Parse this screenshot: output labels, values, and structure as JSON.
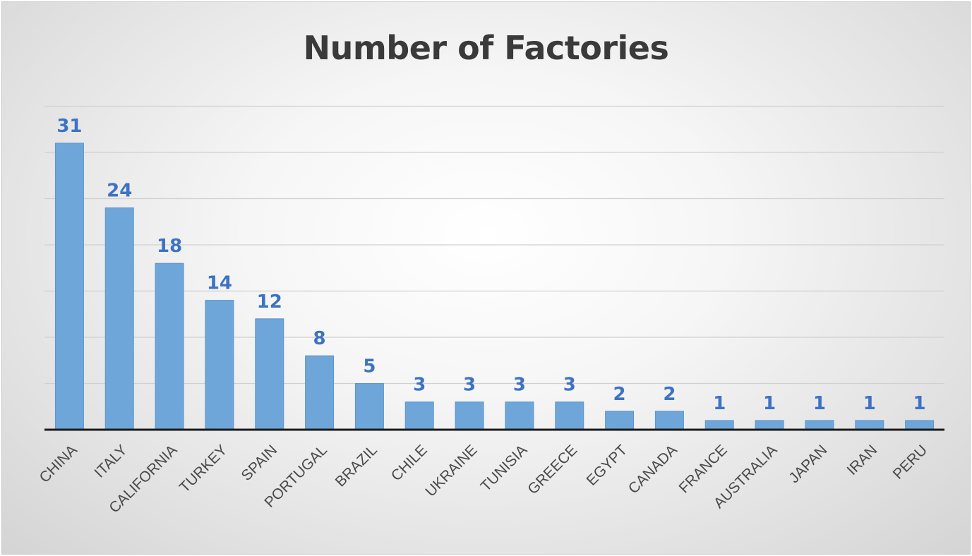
{
  "chart_data": {
    "type": "bar",
    "title": "Number of Factories",
    "xlabel": "",
    "ylabel": "",
    "categories": [
      "CHINA",
      "ITALY",
      "CALIFORNIA",
      "TURKEY",
      "SPAIN",
      "PORTUGAL",
      "BRAZIL",
      "CHILE",
      "UKRAINE",
      "TUNISIA",
      "GREECE",
      "EGYPT",
      "CANADA",
      "FRANCE",
      "AUSTRALIA",
      "JAPAN",
      "IRAN",
      "PERU"
    ],
    "values": [
      31,
      24,
      18,
      14,
      12,
      8,
      5,
      3,
      3,
      3,
      3,
      2,
      2,
      1,
      1,
      1,
      1,
      1
    ],
    "ylim": [
      0,
      35
    ],
    "grid": true,
    "legend": "none",
    "colors": {
      "bar": "#6fa6d9",
      "data_label": "#3d72c4",
      "title": "#3a3a3a"
    }
  }
}
